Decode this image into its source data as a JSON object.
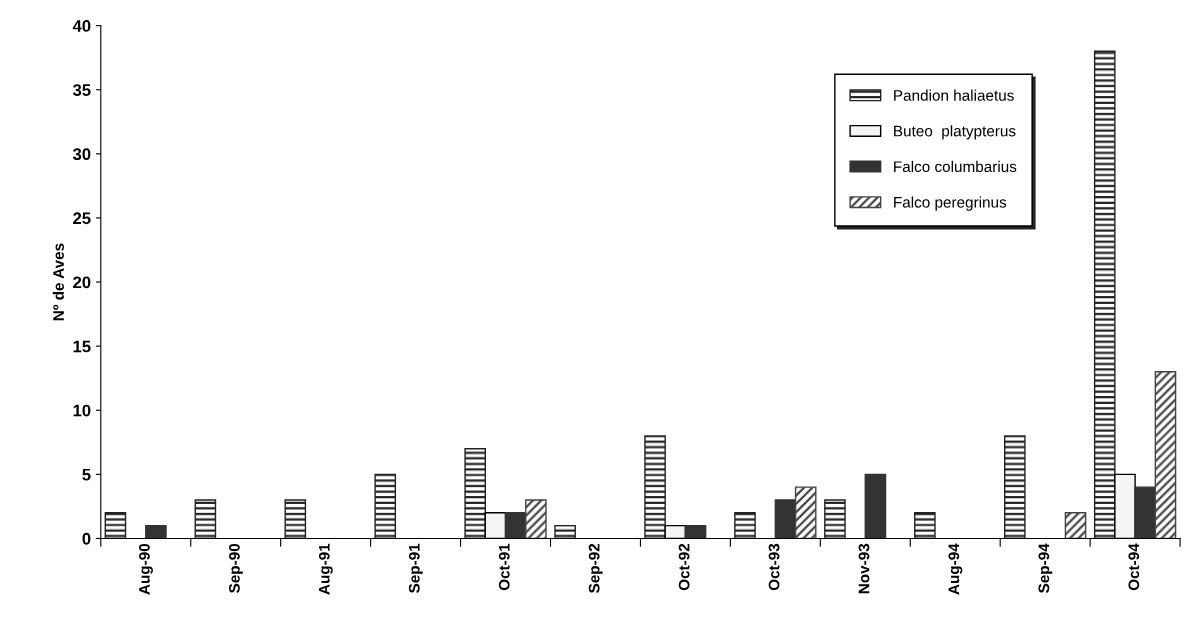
{
  "chart_data": {
    "type": "bar",
    "ylabel": "Nº de Aves",
    "categories": [
      "Aug-90",
      "Sep-90",
      "Aug-91",
      "Sep-91",
      "Oct-91",
      "Sep-92",
      "Oct-92",
      "Oct-93",
      "Nov-93",
      "Aug-94",
      "Sep-94",
      "Oct-94"
    ],
    "series": [
      {
        "name": "Pandion haliaetus",
        "color": "#222222",
        "values": [
          2,
          3,
          3,
          5,
          7,
          1,
          8,
          2,
          3,
          2,
          8,
          38
        ]
      },
      {
        "name": "Buteo  platypterus",
        "color": "#f4f4f4",
        "values": [
          0,
          0,
          0,
          0,
          2,
          0,
          1,
          0,
          0,
          0,
          0,
          5
        ]
      },
      {
        "name": "Falco columbarius",
        "color": "#333333",
        "values": [
          1,
          0,
          0,
          0,
          2,
          0,
          1,
          3,
          5,
          0,
          0,
          4
        ]
      },
      {
        "name": "Falco peregrinus",
        "color": "#444444",
        "values": [
          0,
          0,
          0,
          0,
          3,
          0,
          0,
          4,
          0,
          0,
          2,
          13
        ]
      }
    ],
    "ylim": [
      0,
      40
    ],
    "yticks": [
      0,
      5,
      10,
      15,
      20,
      25,
      30,
      35,
      40
    ],
    "grid": false,
    "legend": "top right"
  }
}
